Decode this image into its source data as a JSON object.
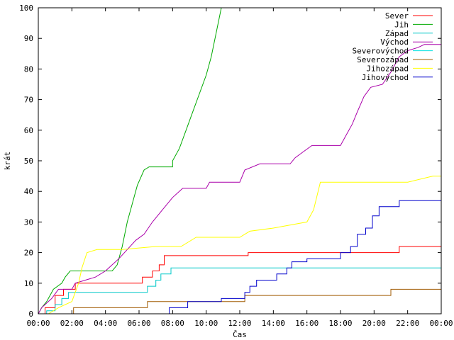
{
  "chart_data": {
    "type": "line",
    "xlabel": "Čas",
    "ylabel": "krát",
    "xlim": [
      0,
      24
    ],
    "ylim": [
      0,
      100
    ],
    "x_ticks": [
      {
        "v": 0,
        "label": "00:00"
      },
      {
        "v": 2,
        "label": "02:00"
      },
      {
        "v": 4,
        "label": "04:00"
      },
      {
        "v": 6,
        "label": "06:00"
      },
      {
        "v": 8,
        "label": "08:00"
      },
      {
        "v": 10,
        "label": "10:00"
      },
      {
        "v": 12,
        "label": "12:00"
      },
      {
        "v": 14,
        "label": "14:00"
      },
      {
        "v": 16,
        "label": "16:00"
      },
      {
        "v": 18,
        "label": "18:00"
      },
      {
        "v": 20,
        "label": "20:00"
      },
      {
        "v": 22,
        "label": "22:00"
      },
      {
        "v": 24,
        "label": "00:00"
      }
    ],
    "y_ticks": [
      0,
      10,
      20,
      30,
      40,
      50,
      60,
      70,
      80,
      90,
      100
    ],
    "grid": false,
    "legend_position": "top-right",
    "series": [
      {
        "name": "Sever",
        "color": "#ff0000",
        "points": [
          [
            0.4,
            0
          ],
          [
            0.4,
            2
          ],
          [
            1.0,
            2
          ],
          [
            1.0,
            6
          ],
          [
            1.5,
            6
          ],
          [
            1.5,
            8
          ],
          [
            2.2,
            8
          ],
          [
            2.2,
            10
          ],
          [
            6.2,
            10
          ],
          [
            6.2,
            12
          ],
          [
            6.8,
            12
          ],
          [
            6.8,
            14
          ],
          [
            7.2,
            14
          ],
          [
            7.2,
            16
          ],
          [
            7.5,
            16
          ],
          [
            7.5,
            19
          ],
          [
            12.5,
            19
          ],
          [
            12.5,
            20
          ],
          [
            21.5,
            20
          ],
          [
            21.5,
            22
          ],
          [
            24,
            22
          ]
        ]
      },
      {
        "name": "Jih",
        "color": "#00aa00",
        "points": [
          [
            0,
            0
          ],
          [
            0.2,
            2
          ],
          [
            0.5,
            4
          ],
          [
            0.9,
            8
          ],
          [
            1.4,
            10
          ],
          [
            1.6,
            12
          ],
          [
            1.9,
            14
          ],
          [
            4.4,
            14
          ],
          [
            4.7,
            16
          ],
          [
            5.0,
            22
          ],
          [
            5.3,
            30
          ],
          [
            5.6,
            36
          ],
          [
            5.9,
            42
          ],
          [
            6.3,
            47
          ],
          [
            6.6,
            48
          ],
          [
            8.0,
            48
          ],
          [
            8.0,
            50
          ],
          [
            8.4,
            54
          ],
          [
            8.8,
            60
          ],
          [
            9.2,
            66
          ],
          [
            9.6,
            72
          ],
          [
            10.0,
            78
          ],
          [
            10.3,
            84
          ],
          [
            10.6,
            92
          ],
          [
            10.9,
            100
          ]
        ]
      },
      {
        "name": "Západ",
        "color": "#00c8c8",
        "points": [
          [
            0.5,
            0
          ],
          [
            0.5,
            1
          ],
          [
            1.0,
            1
          ],
          [
            1.0,
            3
          ],
          [
            1.4,
            3
          ],
          [
            1.4,
            5
          ],
          [
            1.8,
            5
          ],
          [
            1.8,
            7
          ],
          [
            6.5,
            7
          ],
          [
            6.5,
            9
          ],
          [
            7.0,
            9
          ],
          [
            7.0,
            11
          ],
          [
            7.3,
            11
          ],
          [
            7.3,
            13
          ],
          [
            7.9,
            13
          ],
          [
            7.9,
            15
          ],
          [
            24,
            15
          ]
        ]
      },
      {
        "name": "Východ",
        "color": "#aa00aa",
        "points": [
          [
            0,
            0
          ],
          [
            0.2,
            2
          ],
          [
            0.8,
            5
          ],
          [
            1.2,
            8
          ],
          [
            2.0,
            8
          ],
          [
            2.2,
            10
          ],
          [
            2.8,
            11
          ],
          [
            3.4,
            12
          ],
          [
            4.0,
            14
          ],
          [
            4.4,
            16
          ],
          [
            4.8,
            18
          ],
          [
            5.3,
            21
          ],
          [
            5.8,
            24
          ],
          [
            6.3,
            26
          ],
          [
            6.8,
            30
          ],
          [
            7.4,
            34
          ],
          [
            8.0,
            38
          ],
          [
            8.6,
            41
          ],
          [
            10.0,
            41
          ],
          [
            10.2,
            43
          ],
          [
            12.0,
            43
          ],
          [
            12.3,
            47
          ],
          [
            13.2,
            49
          ],
          [
            15.0,
            49
          ],
          [
            15.3,
            51
          ],
          [
            15.8,
            53
          ],
          [
            16.3,
            55
          ],
          [
            18.0,
            55
          ],
          [
            18.3,
            58
          ],
          [
            18.7,
            62
          ],
          [
            19.0,
            66
          ],
          [
            19.4,
            71
          ],
          [
            19.8,
            74
          ],
          [
            20.5,
            75
          ],
          [
            21.0,
            79
          ],
          [
            21.5,
            84
          ],
          [
            22.0,
            86
          ],
          [
            22.6,
            87
          ],
          [
            23.0,
            88
          ],
          [
            24,
            88
          ]
        ]
      },
      {
        "name": "Severovýchod",
        "color": "#00e0e0",
        "points": [
          [
            0,
            0
          ],
          [
            24,
            0
          ]
        ]
      },
      {
        "name": "Severozápad",
        "color": "#a05a00",
        "points": [
          [
            2.1,
            0
          ],
          [
            2.1,
            2
          ],
          [
            6.5,
            2
          ],
          [
            6.5,
            4
          ],
          [
            12.3,
            4
          ],
          [
            12.3,
            6
          ],
          [
            21.0,
            6
          ],
          [
            21.0,
            8
          ],
          [
            24,
            8
          ]
        ]
      },
      {
        "name": "Jihozápad",
        "color": "#ffff00",
        "points": [
          [
            0.6,
            0
          ],
          [
            1.2,
            2
          ],
          [
            2.0,
            4
          ],
          [
            2.4,
            10
          ],
          [
            2.6,
            15
          ],
          [
            2.9,
            20
          ],
          [
            3.5,
            21
          ],
          [
            5.0,
            21
          ],
          [
            7.0,
            22
          ],
          [
            8.5,
            22
          ],
          [
            9.4,
            25
          ],
          [
            12.0,
            25
          ],
          [
            12.6,
            27
          ],
          [
            14.0,
            28
          ],
          [
            16.0,
            30
          ],
          [
            16.4,
            34
          ],
          [
            16.8,
            43
          ],
          [
            22.0,
            43
          ],
          [
            23.5,
            45
          ],
          [
            24,
            45
          ]
        ]
      },
      {
        "name": "Jihovýchod",
        "color": "#0000cc",
        "points": [
          [
            7.8,
            0
          ],
          [
            7.8,
            2
          ],
          [
            8.9,
            2
          ],
          [
            8.9,
            4
          ],
          [
            10.9,
            4
          ],
          [
            10.9,
            5
          ],
          [
            12.3,
            5
          ],
          [
            12.3,
            7
          ],
          [
            12.6,
            7
          ],
          [
            12.6,
            9
          ],
          [
            13.0,
            9
          ],
          [
            13.0,
            11
          ],
          [
            14.2,
            11
          ],
          [
            14.2,
            13
          ],
          [
            14.8,
            13
          ],
          [
            14.8,
            15
          ],
          [
            15.1,
            15
          ],
          [
            15.1,
            17
          ],
          [
            16.0,
            17
          ],
          [
            16.0,
            18
          ],
          [
            18.0,
            18
          ],
          [
            18.0,
            20
          ],
          [
            18.6,
            20
          ],
          [
            18.6,
            22
          ],
          [
            19.0,
            22
          ],
          [
            19.0,
            26
          ],
          [
            19.5,
            26
          ],
          [
            19.5,
            28
          ],
          [
            19.9,
            28
          ],
          [
            19.9,
            32
          ],
          [
            20.3,
            32
          ],
          [
            20.3,
            35
          ],
          [
            21.5,
            35
          ],
          [
            21.5,
            37
          ],
          [
            24,
            37
          ]
        ]
      }
    ]
  }
}
